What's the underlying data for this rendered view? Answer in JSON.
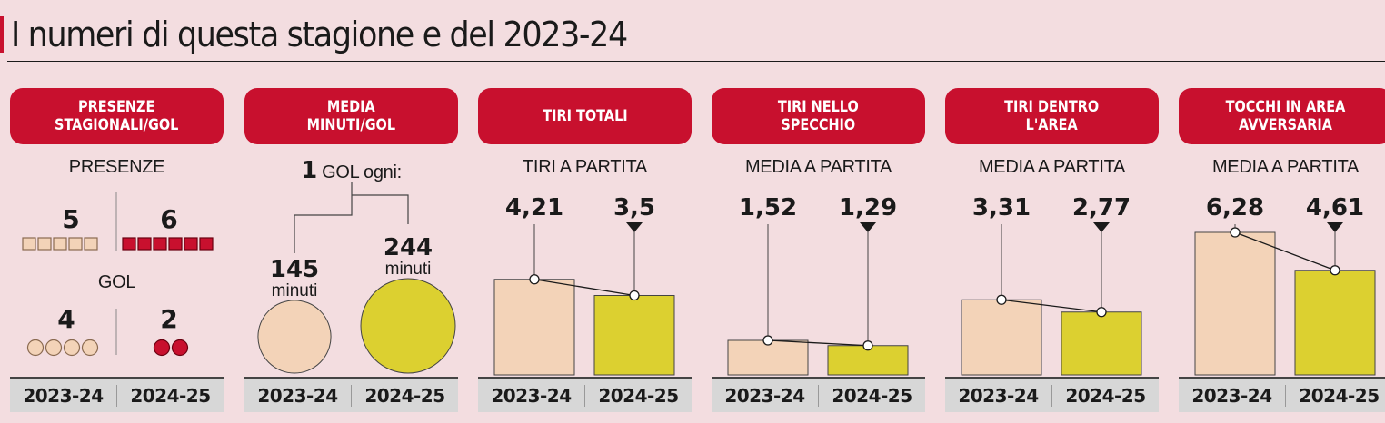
{
  "title": "I numeri di questa stagione e del 2023-24",
  "colors": {
    "accent": "#c8102e",
    "season_2023_24": "#f3d3b8",
    "season_2024_25": "#dcd030",
    "background": "#f3dde0"
  },
  "chart_data": [
    {
      "type": "table",
      "title": "PRESENZE\nSTAGIONALI/GOL",
      "categories": [
        "2023-24",
        "2024-25"
      ],
      "series": [
        {
          "name": "PRESENZE",
          "values": [
            5,
            6
          ]
        },
        {
          "name": "GOL",
          "values": [
            4,
            2
          ]
        }
      ]
    },
    {
      "type": "scatter",
      "title": "MEDIA\nMINUTI/GOL",
      "subtitle_number": "1",
      "subtitle_text": "GOL ogni:",
      "categories": [
        "2023-24",
        "2024-25"
      ],
      "values": [
        145,
        244
      ],
      "unit": "minuti"
    },
    {
      "type": "bar",
      "title": "TIRI TOTALI",
      "subtitle": "TIRI A PARTITA",
      "categories": [
        "2023-24",
        "2024-25"
      ],
      "values": [
        4.21,
        3.5
      ],
      "value_labels": [
        "4,21",
        "3,5"
      ]
    },
    {
      "type": "bar",
      "title": "TIRI NELLO\nSPECCHIO",
      "subtitle": "MEDIA A PARTITA",
      "categories": [
        "2023-24",
        "2024-25"
      ],
      "values": [
        1.52,
        1.29
      ],
      "value_labels": [
        "1,52",
        "1,29"
      ]
    },
    {
      "type": "bar",
      "title": "TIRI DENTRO\nL'AREA",
      "subtitle": "MEDIA A PARTITA",
      "categories": [
        "2023-24",
        "2024-25"
      ],
      "values": [
        3.31,
        2.77
      ],
      "value_labels": [
        "3,31",
        "2,77"
      ]
    },
    {
      "type": "bar",
      "title": "TOCCHI IN AREA\nAVVERSARIA",
      "subtitle": "MEDIA A PARTITA",
      "categories": [
        "2023-24",
        "2024-25"
      ],
      "values": [
        6.28,
        4.61
      ],
      "value_labels": [
        "6,28",
        "4,61"
      ]
    }
  ]
}
